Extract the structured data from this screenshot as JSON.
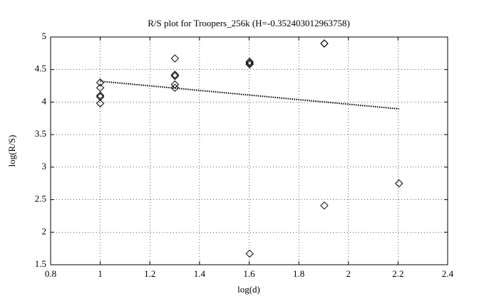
{
  "chart_data": {
    "type": "scatter",
    "title": "R/S plot for Troopers_256k (H=-0.352403012963758)",
    "x_label": "log(d)",
    "y_label": "log(R/S)",
    "xlim": [
      0.8,
      2.4
    ],
    "xticks": [
      0.8,
      1,
      1.2,
      1.4,
      1.6,
      1.8,
      2,
      2.2,
      2.4
    ],
    "ylim": [
      1.5,
      5
    ],
    "yticks": [
      1.5,
      2,
      2.5,
      3,
      3.5,
      4,
      4.5,
      5
    ],
    "grid": true,
    "series": [
      {
        "type": "scatter",
        "marker": "diamond",
        "color": "#000000",
        "x": [
          1,
          1,
          1,
          1,
          1,
          1.301,
          1.301,
          1.301,
          1.301,
          1.301,
          1.602,
          1.602,
          1.602,
          1.602,
          1.903,
          1.903,
          1.903,
          2.204
        ],
        "values": [
          4.3,
          4.22,
          4.1,
          4.08,
          3.98,
          4.67,
          4.42,
          4.4,
          4.27,
          4.22,
          4.62,
          4.6,
          4.58,
          1.67,
          4.9,
          4.9,
          2.41,
          2.75
        ]
      },
      {
        "type": "line",
        "style": "dotted",
        "color": "#000000",
        "x": [
          1,
          2.204
        ],
        "values": [
          4.32,
          3.895
        ]
      }
    ]
  }
}
